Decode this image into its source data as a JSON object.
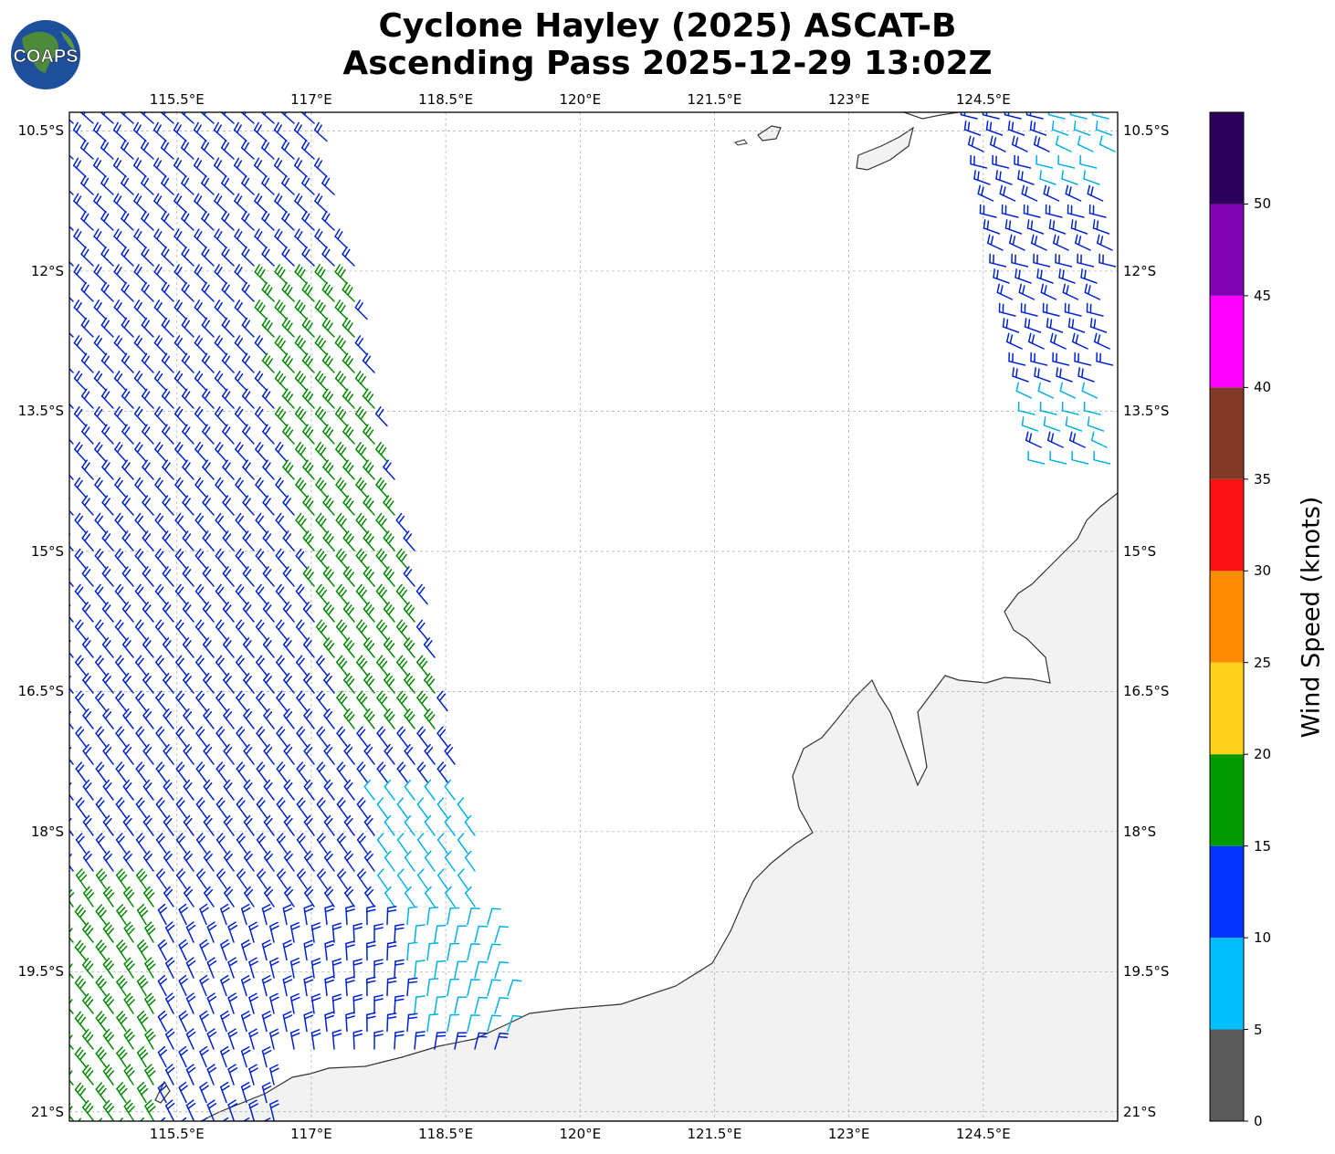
{
  "title": {
    "line1": "Cyclone Hayley (2025) ASCAT-B",
    "line2": "Ascending Pass 2025-12-29 13:02Z"
  },
  "logo": {
    "text": "COAPS",
    "icon": "globe-logo-icon"
  },
  "map": {
    "lon_range": [
      114.3,
      126.0
    ],
    "lat_range": [
      -21.1,
      -10.3
    ],
    "lon_ticks": [
      "115.5°E",
      "117°E",
      "118.5°E",
      "120°E",
      "121.5°E",
      "123°E",
      "124.5°E"
    ],
    "lon_values": [
      115.5,
      117.0,
      118.5,
      120.0,
      121.5,
      123.0,
      124.5
    ],
    "lat_ticks": [
      "10.5°S",
      "12°S",
      "13.5°S",
      "15°S",
      "16.5°S",
      "18°S",
      "19.5°S",
      "21°S"
    ],
    "lat_values": [
      -10.5,
      -12.0,
      -13.5,
      -15.0,
      -16.5,
      -18.0,
      -19.5,
      -21.0
    ],
    "gridlines": true,
    "land_color": "#f2f2f2",
    "coast_color": "#333333"
  },
  "colorbar": {
    "label": "Wind Speed (knots)",
    "ticks": [
      "0",
      "5",
      "10",
      "15",
      "20",
      "25",
      "30",
      "35",
      "40",
      "45",
      "50"
    ],
    "bins": [
      {
        "min": 0,
        "max": 5,
        "color": "#595959"
      },
      {
        "min": 5,
        "max": 10,
        "color": "#00bfff"
      },
      {
        "min": 10,
        "max": 15,
        "color": "#0033ff"
      },
      {
        "min": 15,
        "max": 20,
        "color": "#009900"
      },
      {
        "min": 20,
        "max": 25,
        "color": "#ffd11a"
      },
      {
        "min": 25,
        "max": 30,
        "color": "#ff8c00"
      },
      {
        "min": 30,
        "max": 35,
        "color": "#ff1111"
      },
      {
        "min": 35,
        "max": 40,
        "color": "#803a26"
      },
      {
        "min": 40,
        "max": 45,
        "color": "#ff00ff"
      },
      {
        "min": 45,
        "max": 50,
        "color": "#8000b3"
      },
      {
        "min": 50,
        "max": 55,
        "color": "#2d0059"
      }
    ],
    "barb_colors": {
      "cyan": "#00b0e8",
      "blue": "#0022cc",
      "green": "#008800"
    }
  }
}
